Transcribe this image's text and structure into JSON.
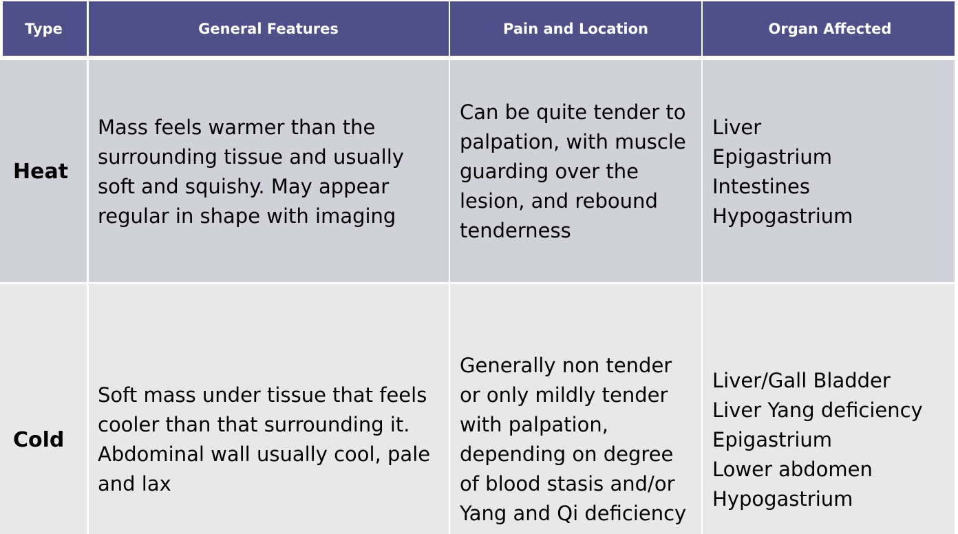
{
  "table": {
    "headers": [
      "Type",
      "General Features",
      "Pain and Location",
      "Organ Affected"
    ],
    "rows": [
      {
        "type": "Heat",
        "general_features": "Mass feels warmer than the\nsurrounding tissue and usually\nsoft and squishy. May appear\nregular in shape with imaging",
        "pain_and_location": "Can be quite tender to\npalpation, with muscle\nguarding over the\nlesion, and rebound\ntenderness",
        "organ_affected": "Liver\nEpigastrium\nIntestines\nHypogastrium"
      },
      {
        "type": "Cold",
        "general_features": "Soft mass under tissue that feels\ncooler than that surrounding it.\nAbdominal wall usually cool, pale\nand lax",
        "pain_and_location": "Generally non tender\nor only mildly tender\nwith palpation,\ndepending on degree\nof blood stasis and/or\nYang and Qi deficiency",
        "organ_affected": "Liver/Gall Bladder\nLiver Yang deficiency\nEpigastrium\nLower abdomen\nHypogastrium"
      }
    ]
  },
  "colors": {
    "header_bg": "#4f4f8a",
    "row_heat_bg": "#d1d1da",
    "row_cold_bg": "#e8e8e9",
    "border": "#ffffff"
  }
}
